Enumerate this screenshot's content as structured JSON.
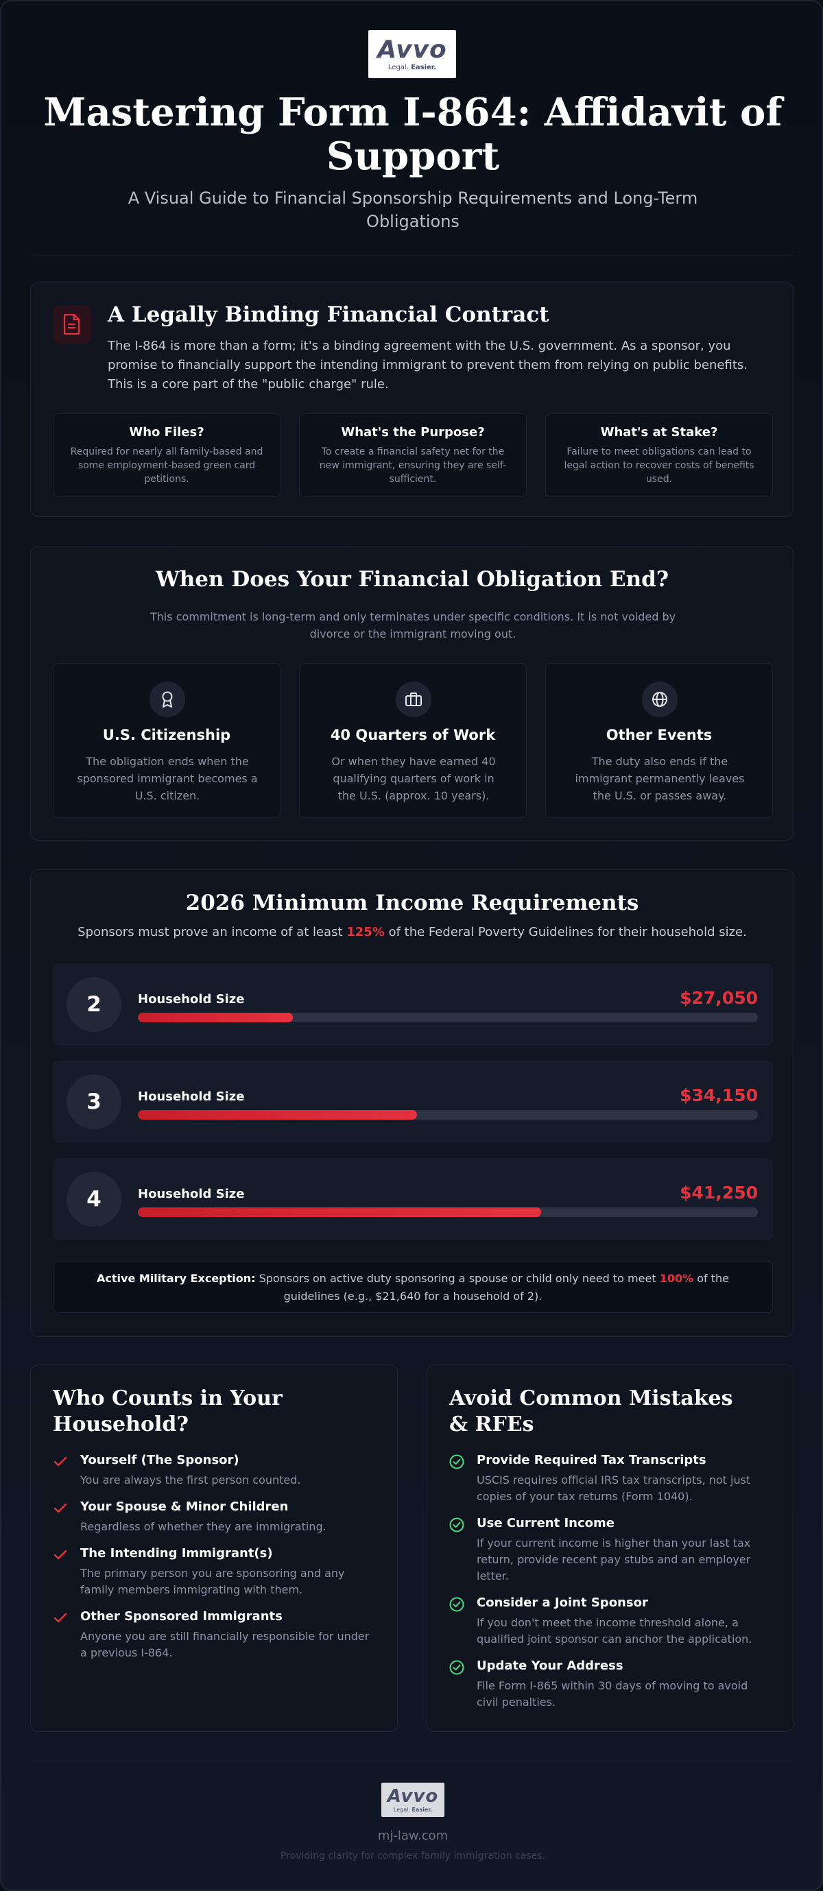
{
  "logo": {
    "word": "Avvo",
    "tagline_a": "Legal.",
    "tagline_b": "Easier."
  },
  "hero": {
    "title": "Mastering Form I-864: Affidavit of Support",
    "subtitle": "A Visual Guide to Financial Sponsorship Requirements and Long-Term Obligations"
  },
  "contract": {
    "icon": "document-icon",
    "title": "A Legally Binding Financial Contract",
    "body": "The I-864 is more than a form; it's a binding agreement with the U.S. government. As a sponsor, you promise to financially support the intending immigrant to prevent them from relying on public benefits. This is a core part of the \"public charge\" rule.",
    "cards": [
      {
        "title": "Who Files?",
        "text": "Required for nearly all family-based and some employment-based green card petitions."
      },
      {
        "title": "What's the Purpose?",
        "text": "To create a financial safety net for the new immigrant, ensuring they are self-sufficient."
      },
      {
        "title": "What's at Stake?",
        "text": "Failure to meet obligations can lead to legal action to recover costs of benefits used."
      }
    ]
  },
  "obligation": {
    "title": "When Does Your Financial Obligation End?",
    "body": "This commitment is long-term and only terminates under specific conditions. It is not voided by divorce or the immigrant moving out.",
    "cards": [
      {
        "icon": "award-icon",
        "title": "U.S. Citizenship",
        "text": "The obligation ends when the sponsored immigrant becomes a U.S. citizen."
      },
      {
        "icon": "briefcase-icon",
        "title": "40 Quarters of Work",
        "text": "Or when they have earned 40 qualifying quarters of work in the U.S. (approx. 10 years)."
      },
      {
        "icon": "globe-icon",
        "title": "Other Events",
        "text": "The duty also ends if the immigrant permanently leaves the U.S. or passes away."
      }
    ]
  },
  "income": {
    "title": "2026 Minimum Income Requirements",
    "sub_a": "Sponsors must prove an income of at least ",
    "sub_pct": "125%",
    "sub_b": " of the Federal Poverty Guidelines for their household size.",
    "rows": [
      {
        "size": "2",
        "label": "Household Size",
        "amount": "$27,050",
        "fill": 0.25
      },
      {
        "size": "3",
        "label": "Household Size",
        "amount": "$34,150",
        "fill": 0.45
      },
      {
        "size": "4",
        "label": "Household Size",
        "amount": "$41,250",
        "fill": 0.65
      }
    ],
    "military": {
      "label": "Active Military Exception:",
      "text_a": " Sponsors on active duty sponsoring a spouse or child only need to meet ",
      "pct": "100%",
      "text_b": " of the guidelines (e.g., $21,640 for a household of 2)."
    }
  },
  "household": {
    "title": "Who Counts in Your Household?",
    "items": [
      {
        "title": "Yourself (The Sponsor)",
        "text": "You are always the first person counted."
      },
      {
        "title": "Your Spouse & Minor Children",
        "text": "Regardless of whether they are immigrating."
      },
      {
        "title": "The Intending Immigrant(s)",
        "text": "The primary person you are sponsoring and any family members immigrating with them."
      },
      {
        "title": "Other Sponsored Immigrants",
        "text": "Anyone you are still financially responsible for under a previous I-864."
      }
    ]
  },
  "mistakes": {
    "title": "Avoid Common Mistakes & RFEs",
    "items": [
      {
        "title": "Provide Required Tax Transcripts",
        "text": "USCIS requires official IRS tax transcripts, not just copies of your tax returns (Form 1040)."
      },
      {
        "title": "Use Current Income",
        "text": "If your current income is higher than your last tax return, provide recent pay stubs and an employer letter."
      },
      {
        "title": "Consider a Joint Sponsor",
        "text": "If you don't meet the income threshold alone, a qualified joint sponsor can anchor the application."
      },
      {
        "title": "Update Your Address",
        "text": "File Form I-865 within 30 days of moving to avoid civil penalties."
      }
    ]
  },
  "footer": {
    "url": "mj-law.com",
    "tagline": "Providing clarity for complex family immigration cases."
  },
  "colors": {
    "accent": "#e5323e",
    "check": "#4ade80"
  }
}
